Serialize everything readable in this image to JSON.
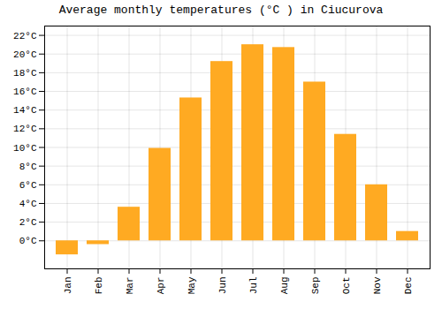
{
  "chart_data": {
    "type": "bar",
    "title": "Average monthly temperatures (°C ) in Ciucurova",
    "categories": [
      "Jan",
      "Feb",
      "Mar",
      "Apr",
      "May",
      "Jun",
      "Jul",
      "Aug",
      "Sep",
      "Oct",
      "Nov",
      "Dec"
    ],
    "values": [
      -1.5,
      -0.4,
      3.6,
      9.9,
      15.3,
      19.2,
      21.0,
      20.7,
      17.0,
      11.4,
      6.0,
      1.0
    ],
    "color": "#FFAA22",
    "ylim": [
      -3,
      23
    ],
    "yticks": [
      {
        "value": 0,
        "label": "0°C"
      },
      {
        "value": 2,
        "label": "2°C"
      },
      {
        "value": 4,
        "label": "4°C"
      },
      {
        "value": 6,
        "label": "6°C"
      },
      {
        "value": 8,
        "label": "8°C"
      },
      {
        "value": 10,
        "label": "10°C"
      },
      {
        "value": 12,
        "label": "12°C"
      },
      {
        "value": 14,
        "label": "14°C"
      },
      {
        "value": 16,
        "label": "16°C"
      },
      {
        "value": 18,
        "label": "18°C"
      },
      {
        "value": 20,
        "label": "20°C"
      },
      {
        "value": 22,
        "label": "22°C"
      }
    ],
    "grid": true
  }
}
